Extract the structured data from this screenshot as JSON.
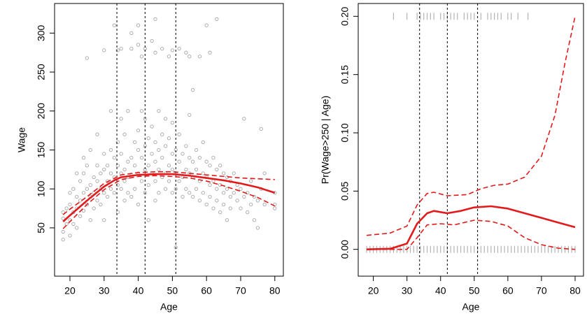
{
  "chart_data": [
    {
      "type": "scatter",
      "xlabel": "Age",
      "ylabel": "Wage",
      "xlim": [
        15.5,
        82.5
      ],
      "ylim": [
        -12,
        338
      ],
      "xticks": [
        20,
        30,
        40,
        50,
        60,
        70,
        80
      ],
      "yticks": [
        50,
        100,
        150,
        200,
        250,
        300
      ],
      "vlines": [
        33.75,
        42,
        51
      ],
      "series": [
        {
          "style": "points",
          "color": "#a6a6a6",
          "x": [
            18,
            18,
            18,
            18,
            19,
            19,
            20,
            20,
            20,
            20,
            21,
            21,
            21,
            22,
            22,
            22,
            22,
            23,
            23,
            23,
            24,
            24,
            24,
            24,
            25,
            25,
            25,
            25,
            26,
            26,
            26,
            26,
            27,
            27,
            27,
            28,
            28,
            28,
            28,
            29,
            29,
            29,
            30,
            30,
            30,
            30,
            30,
            31,
            31,
            31,
            32,
            32,
            32,
            32,
            33,
            33,
            33,
            33,
            34,
            34,
            34,
            34,
            34,
            35,
            35,
            35,
            35,
            35,
            36,
            36,
            36,
            36,
            37,
            37,
            37,
            37,
            38,
            38,
            38,
            38,
            38,
            39,
            39,
            39,
            40,
            40,
            40,
            40,
            40,
            40,
            41,
            41,
            41,
            41,
            42,
            42,
            42,
            42,
            42,
            43,
            43,
            43,
            43,
            44,
            44,
            44,
            44,
            45,
            45,
            45,
            45,
            45,
            45,
            46,
            46,
            46,
            46,
            47,
            47,
            47,
            47,
            48,
            48,
            48,
            48,
            49,
            49,
            49,
            49,
            50,
            50,
            50,
            50,
            50,
            51,
            51,
            51,
            51,
            52,
            52,
            52,
            52,
            53,
            53,
            53,
            54,
            54,
            54,
            54,
            55,
            55,
            55,
            55,
            55,
            56,
            56,
            56,
            56,
            57,
            57,
            57,
            58,
            58,
            58,
            58,
            59,
            59,
            59,
            60,
            60,
            60,
            60,
            61,
            61,
            61,
            61,
            62,
            62,
            62,
            63,
            63,
            63,
            63,
            64,
            64,
            64,
            65,
            65,
            65,
            66,
            66,
            66,
            67,
            67,
            67,
            68,
            68,
            69,
            69,
            70,
            70,
            71,
            71,
            72,
            72,
            73,
            73,
            74,
            74,
            75,
            75,
            76,
            76,
            77,
            77,
            80,
            80,
            80
          ],
          "values": [
            62,
            70,
            45,
            35,
            75,
            55,
            80,
            60,
            95,
            40,
            70,
            100,
            55,
            90,
            75,
            120,
            50,
            85,
            110,
            65,
            95,
            120,
            72,
            140,
            100,
            80,
            130,
            268,
            105,
            90,
            150,
            60,
            115,
            95,
            75,
            110,
            130,
            85,
            170,
            120,
            100,
            80,
            125,
            95,
            145,
            278,
            60,
            110,
            130,
            90,
            120,
            150,
            100,
            200,
            115,
            140,
            95,
            310,
            130,
            105,
            160,
            70,
            278,
            120,
            145,
            100,
            190,
            280,
            125,
            110,
            170,
            85,
            135,
            115,
            95,
            200,
            140,
            118,
            90,
            280,
            300,
            130,
            160,
            100,
            120,
            150,
            175,
            80,
            285,
            310,
            140,
            110,
            200,
            270,
            125,
            155,
            95,
            190,
            280,
            130,
            105,
            165,
            60,
            120,
            145,
            180,
            290,
            135,
            110,
            160,
            85,
            275,
            318,
            125,
            150,
            95,
            200,
            140,
            115,
            170,
            280,
            120,
            155,
            100,
            190,
            130,
            110,
            165,
            270,
            125,
            145,
            95,
            185,
            278,
            120,
            150,
            100,
            25,
            135,
            110,
            170,
            280,
            115,
            145,
            90,
            125,
            155,
            100,
            275,
            120,
            140,
            95,
            195,
            270,
            115,
            135,
            90,
            227,
            125,
            150,
            100,
            110,
            140,
            85,
            270,
            120,
            95,
            160,
            115,
            135,
            80,
            310,
            105,
            130,
            90,
            275,
            110,
            140,
            75,
            100,
            125,
            85,
            318,
            105,
            130,
            70,
            95,
            120,
            80,
            100,
            115,
            60,
            90,
            110,
            75,
            95,
            120,
            85,
            105,
            100,
            75,
            90,
            190,
            95,
            70,
            80,
            110,
            90,
            60,
            85,
            50,
            100,
            177,
            80,
            120,
            95,
            80,
            75
          ]
        },
        {
          "style": "line",
          "color": "#e31a1c",
          "x": [
            18,
            20,
            25,
            30,
            33,
            35,
            40,
            45,
            50,
            55,
            60,
            65,
            70,
            75,
            80
          ],
          "values": [
            58,
            66,
            85,
            103,
            111,
            115,
            118,
            119,
            119,
            117,
            114,
            111,
            107,
            102,
            95
          ]
        },
        {
          "style": "dashed",
          "color": "#e31a1c",
          "x": [
            18,
            20,
            25,
            30,
            35,
            40,
            45,
            50,
            55,
            60,
            65,
            70,
            75,
            80
          ],
          "values": [
            67,
            74,
            90,
            107,
            118,
            121,
            122,
            122,
            120,
            118,
            116,
            114,
            113,
            112
          ]
        },
        {
          "style": "dashed",
          "color": "#e31a1c",
          "x": [
            18,
            20,
            25,
            30,
            35,
            40,
            45,
            50,
            55,
            60,
            65,
            70,
            75,
            80
          ],
          "values": [
            49,
            58,
            80,
            99,
            112,
            116,
            117,
            116,
            114,
            110,
            104,
            97,
            89,
            78
          ]
        }
      ]
    },
    {
      "type": "scatter",
      "xlabel": "Age",
      "ylabel": "Pr(Wage>250 | Age)",
      "xlim": [
        15.5,
        82.5
      ],
      "ylim": [
        -0.023,
        0.211
      ],
      "xticks": [
        20,
        30,
        40,
        50,
        60,
        70,
        80
      ],
      "yticks": [
        {
          "value": 0,
          "label": "0.00"
        },
        0.05,
        {
          "value": 0.1,
          "label": "0.10"
        },
        0.15,
        {
          "value": 0.2,
          "label": "0.20"
        }
      ],
      "vlines": [
        33.75,
        42,
        51
      ],
      "series": [
        {
          "style": "rug",
          "color": "#b3b3b3",
          "x": [
            26,
            30,
            33,
            34,
            35,
            36,
            37,
            38,
            40,
            41,
            42,
            43,
            44,
            45,
            47,
            48,
            49,
            50,
            52,
            54,
            55,
            56,
            57,
            58,
            60,
            61,
            63,
            66
          ],
          "values": [
            0.2,
            0.2,
            0.2,
            0.2,
            0.2,
            0.2,
            0.2,
            0.2,
            0.2,
            0.2,
            0.2,
            0.2,
            0.2,
            0.2,
            0.2,
            0.2,
            0.2,
            0.2,
            0.2,
            0.2,
            0.2,
            0.2,
            0.2,
            0.2,
            0.2,
            0.2,
            0.2,
            0.2
          ]
        },
        {
          "style": "rug",
          "color": "#b3b3b3",
          "x": [
            18,
            19,
            20,
            21,
            22,
            23,
            24,
            25,
            26,
            27,
            28,
            29,
            30,
            31,
            32,
            33,
            34,
            35,
            36,
            37,
            38,
            39,
            40,
            41,
            42,
            43,
            44,
            45,
            46,
            47,
            48,
            49,
            50,
            51,
            52,
            53,
            54,
            55,
            56,
            57,
            58,
            59,
            60,
            61,
            62,
            63,
            64,
            65,
            66,
            67,
            68,
            69,
            70,
            71,
            72,
            73,
            74,
            75,
            76,
            77,
            78,
            79,
            80
          ],
          "values": [
            0,
            0,
            0,
            0,
            0,
            0,
            0,
            0,
            0,
            0,
            0,
            0,
            0,
            0,
            0,
            0,
            0,
            0,
            0,
            0,
            0,
            0,
            0,
            0,
            0,
            0,
            0,
            0,
            0,
            0,
            0,
            0,
            0,
            0,
            0,
            0,
            0,
            0,
            0,
            0,
            0,
            0,
            0,
            0,
            0,
            0,
            0,
            0,
            0,
            0,
            0,
            0,
            0,
            0,
            0,
            0,
            0,
            0,
            0,
            0,
            0,
            0,
            0
          ]
        },
        {
          "style": "line",
          "color": "#e31a1c",
          "x": [
            18,
            25,
            30,
            33,
            36,
            38,
            42,
            46,
            50,
            55,
            60,
            65,
            70,
            75,
            80
          ],
          "values": [
            0,
            0.0005,
            0.005,
            0.022,
            0.031,
            0.033,
            0.031,
            0.033,
            0.036,
            0.037,
            0.035,
            0.031,
            0.027,
            0.023,
            0.019
          ]
        },
        {
          "style": "dashed",
          "color": "#e31a1c",
          "x": [
            18,
            25,
            30,
            33,
            36,
            38,
            42,
            48,
            52,
            56,
            60,
            65,
            70,
            74,
            77,
            80
          ],
          "values": [
            0.012,
            0.014,
            0.02,
            0.038,
            0.048,
            0.049,
            0.046,
            0.047,
            0.052,
            0.055,
            0.056,
            0.062,
            0.08,
            0.115,
            0.16,
            0.2
          ]
        },
        {
          "style": "dashed",
          "color": "#e31a1c",
          "x": [
            18,
            30,
            33,
            36,
            40,
            44,
            50,
            55,
            60,
            65,
            70,
            75,
            80
          ],
          "values": [
            0,
            0,
            0.01,
            0.021,
            0.022,
            0.021,
            0.025,
            0.024,
            0.02,
            0.01,
            0.004,
            0.001,
            0
          ]
        }
      ]
    }
  ]
}
